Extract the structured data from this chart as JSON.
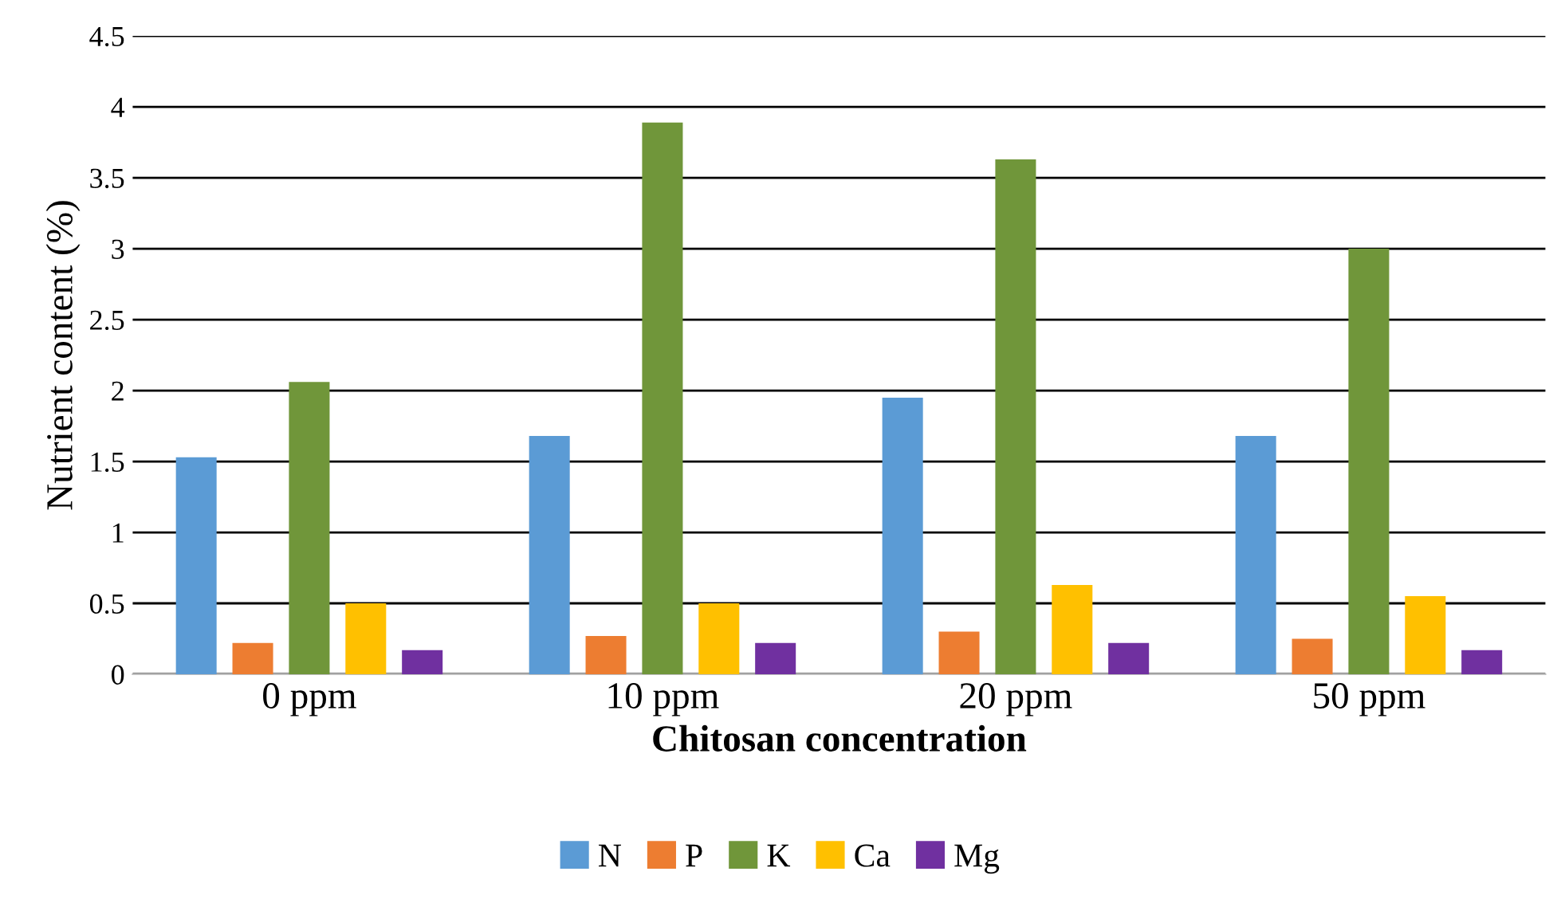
{
  "chart_data": {
    "type": "bar",
    "xlabel": "Chitosan concentration",
    "ylabel": "Nutrient content (%)",
    "categories": [
      "0 ppm",
      "10 ppm",
      "20 ppm",
      "50 ppm"
    ],
    "series": [
      {
        "name": "N",
        "color": "#5b9bd5",
        "values": [
          1.53,
          1.68,
          1.95,
          1.68
        ]
      },
      {
        "name": "P",
        "color": "#ed7d31",
        "values": [
          0.22,
          0.27,
          0.3,
          0.25
        ]
      },
      {
        "name": "K",
        "color": "#70963a",
        "values": [
          2.06,
          3.89,
          3.63,
          3.0
        ]
      },
      {
        "name": "Ca",
        "color": "#ffc000",
        "values": [
          0.5,
          0.5,
          0.63,
          0.55
        ]
      },
      {
        "name": "Mg",
        "color": "#7030a0",
        "values": [
          0.17,
          0.22,
          0.22,
          0.17
        ]
      }
    ],
    "ylim": [
      0,
      4.5
    ],
    "yticks": [
      0,
      0.5,
      1,
      1.5,
      2,
      2.5,
      3,
      3.5,
      4,
      4.5
    ],
    "grid": "y",
    "legend": "bottom"
  }
}
